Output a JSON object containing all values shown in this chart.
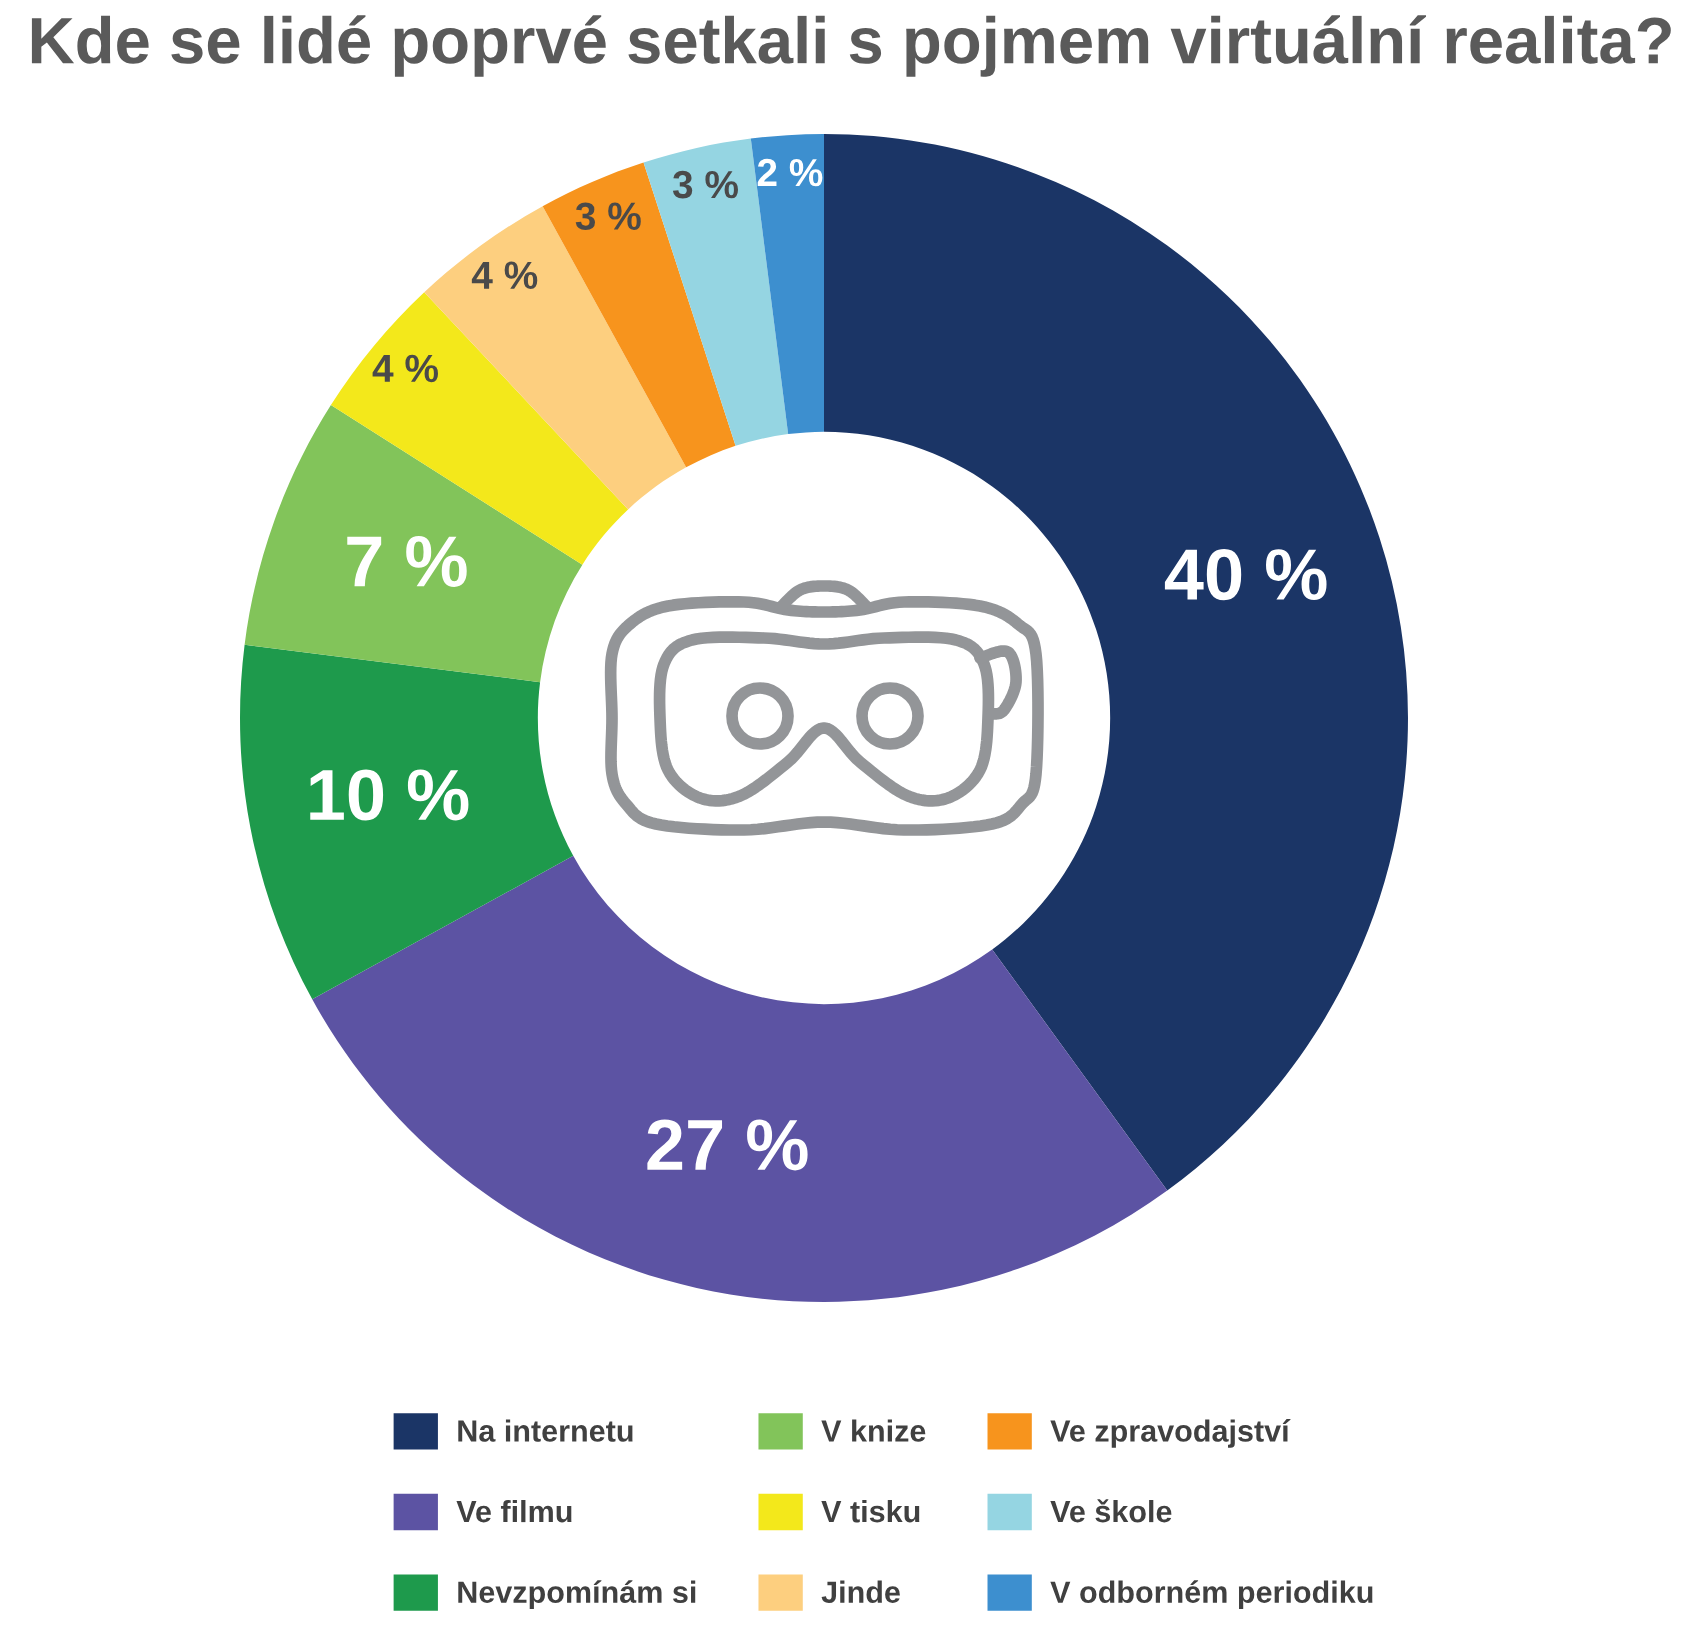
{
  "chart_data": {
    "type": "donut",
    "title": "Kde se lidé poprvé setkali s pojmem virtuální realita?",
    "categories": [
      "Na internetu",
      "Ve filmu",
      "Nevzpomínám si",
      "V knize",
      "V tisku",
      "Jinde",
      "Ve zpravodajství",
      "Ve škole",
      "V odborném periodiku"
    ],
    "values": [
      40,
      27,
      10,
      7,
      4,
      4,
      3,
      3,
      2
    ],
    "colors": [
      "#1b3566",
      "#5c53a3",
      "#1e9a4c",
      "#82c45a",
      "#f3e81b",
      "#fdcf7f",
      "#f7941d",
      "#95d5e2",
      "#3d8fcf"
    ],
    "value_labels": [
      "40 %",
      "27 %",
      "10 %",
      "7 %",
      "4 %",
      "4 %",
      "3 %",
      "3 %",
      "2 %"
    ],
    "legend": "bottom"
  }
}
